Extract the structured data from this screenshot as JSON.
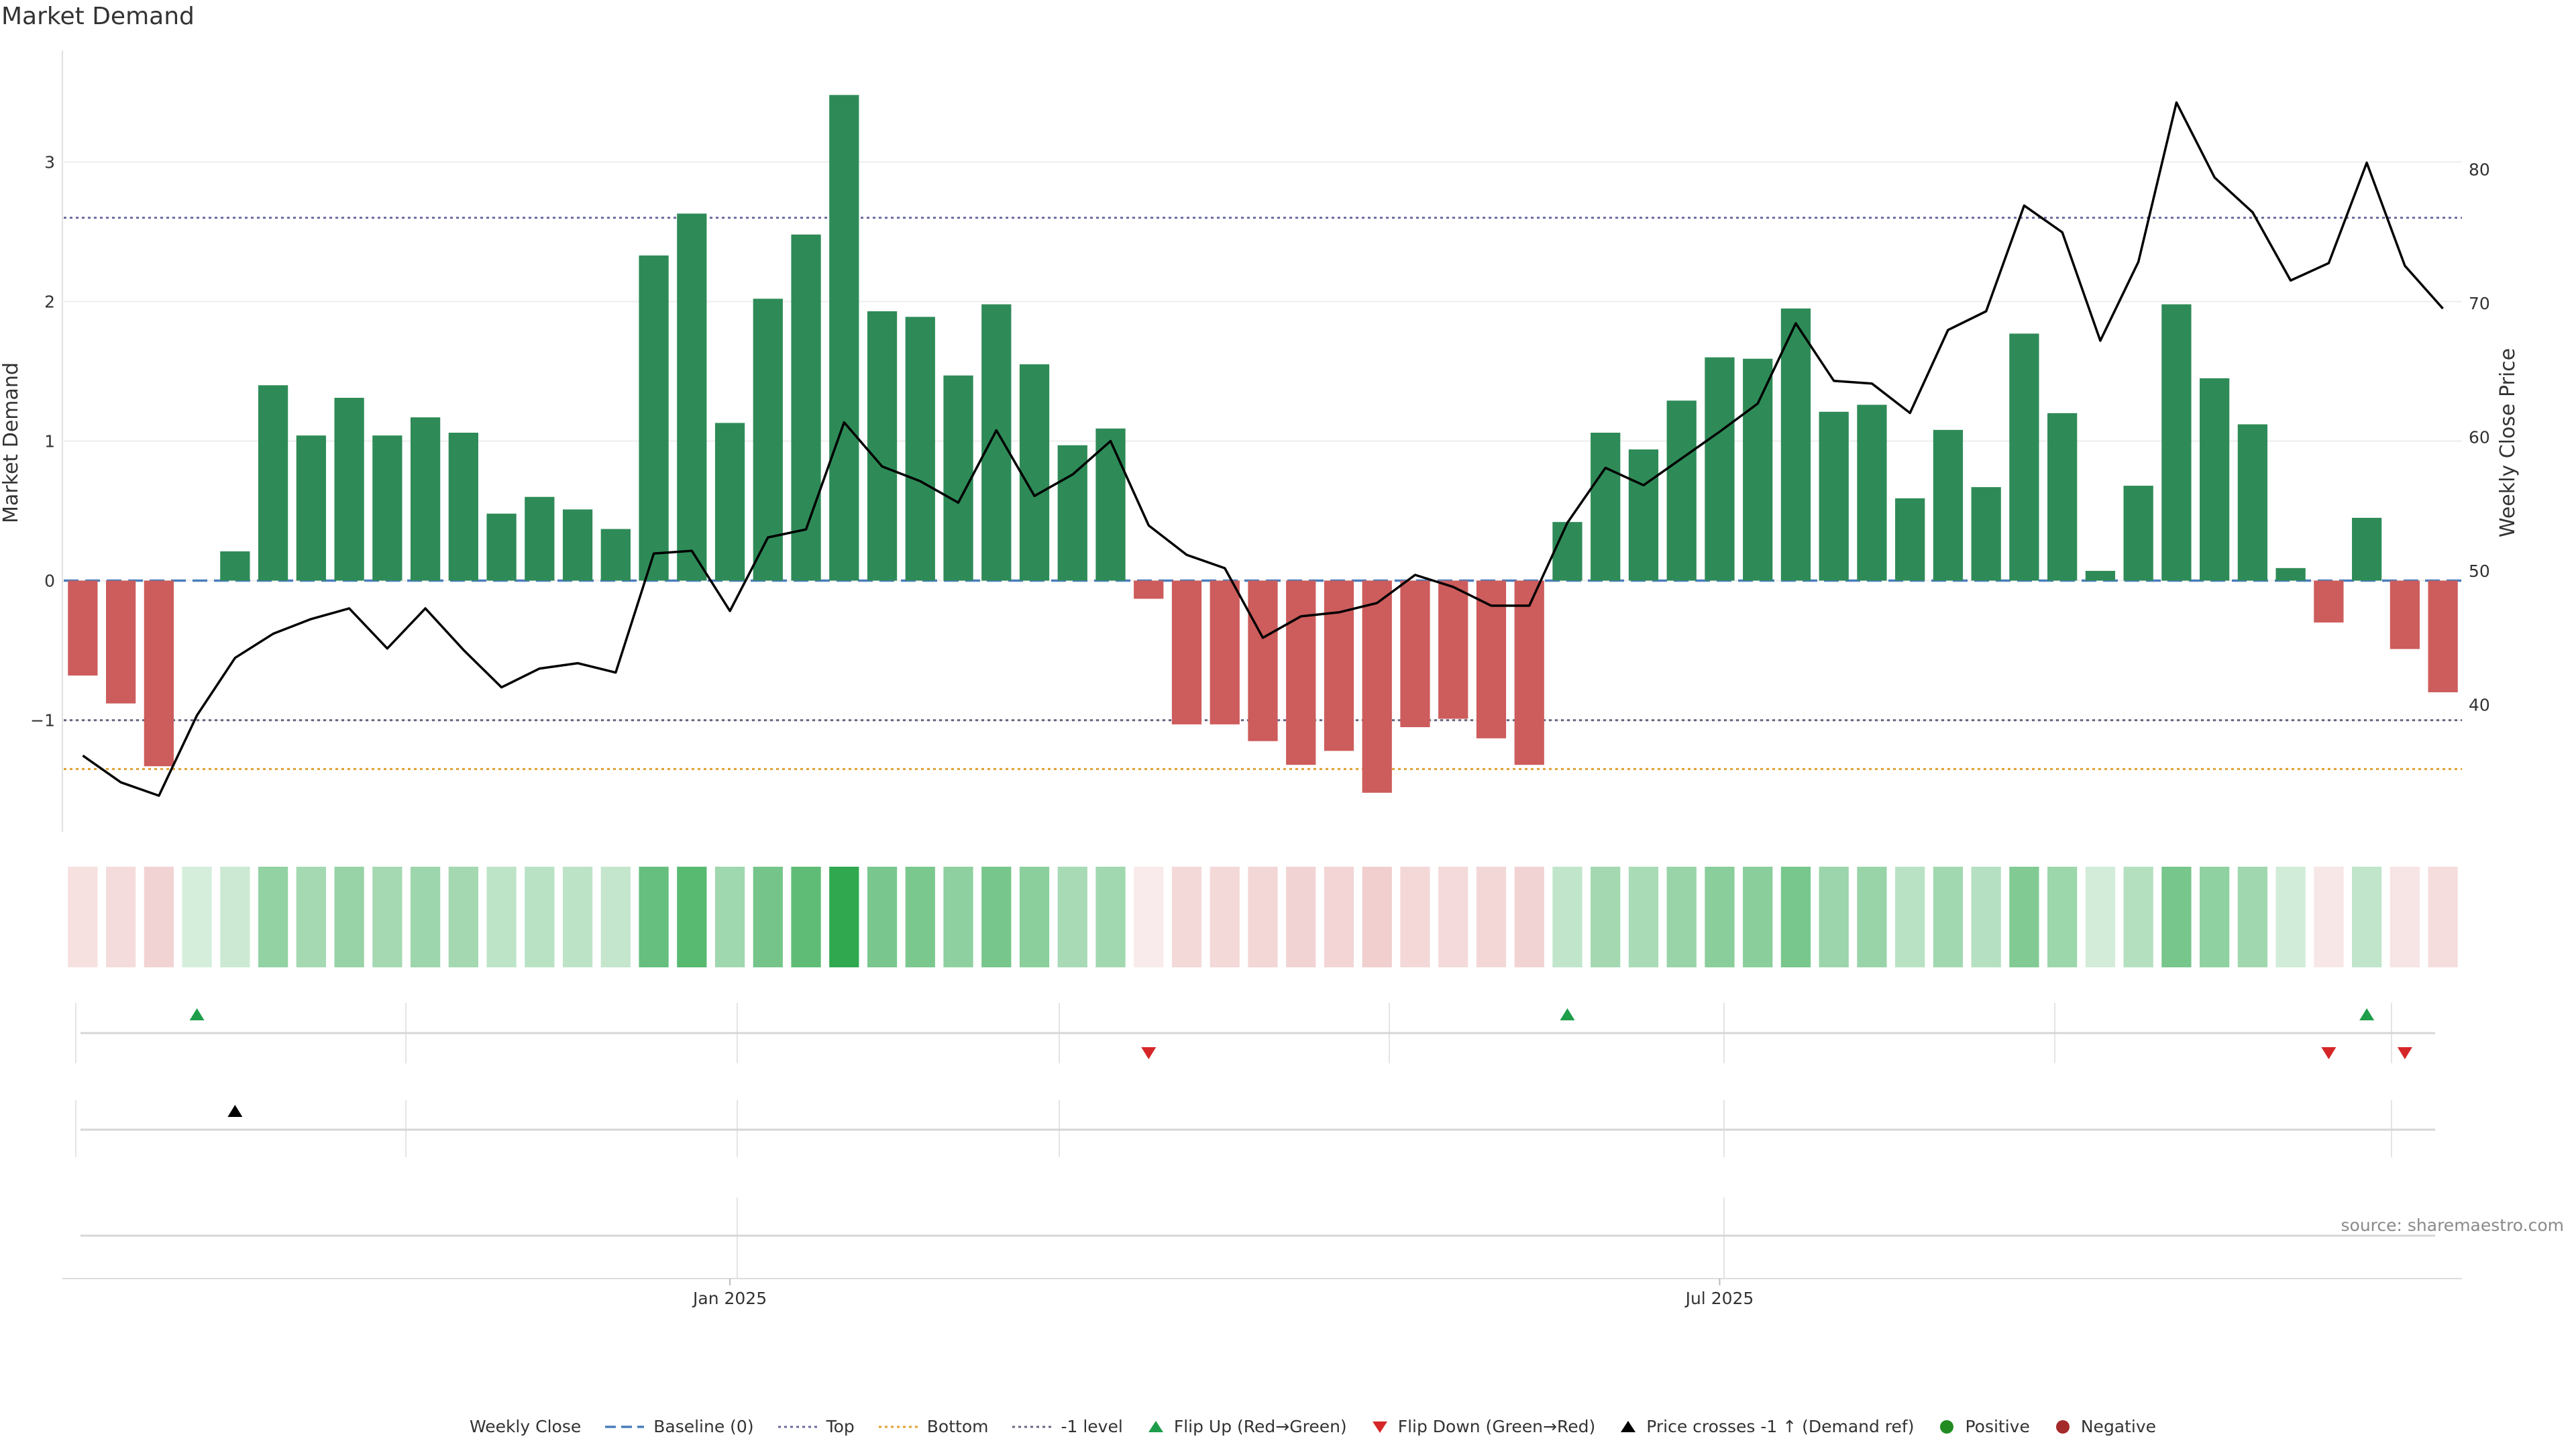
{
  "chart_data": {
    "type": "bar",
    "title": "Market Demand",
    "ylabel": "Market Demand",
    "y2label": "Weekly Close Price",
    "ylim": [
      -1.8,
      3.8
    ],
    "y2lim": [
      30.5,
      88.9
    ],
    "yticks": [
      -1,
      0,
      1,
      2,
      3
    ],
    "y2ticks": [
      40,
      50,
      60,
      70,
      80
    ],
    "xticks": [
      {
        "index": 17.5,
        "label": "Jan 2025"
      },
      {
        "index": 43.5,
        "label": "Jul 2025"
      }
    ],
    "levels": {
      "baseline": 0,
      "top": 2.6,
      "bottom": -1.35,
      "minus_one": -1
    },
    "demand": [
      -0.68,
      -0.88,
      -1.33,
      0.0,
      0.21,
      1.4,
      1.04,
      1.31,
      1.04,
      1.17,
      1.06,
      0.48,
      0.6,
      0.51,
      0.37,
      2.33,
      2.63,
      1.13,
      2.02,
      2.48,
      3.48,
      1.93,
      1.89,
      1.47,
      1.98,
      1.55,
      0.97,
      1.09,
      -0.13,
      -1.03,
      -1.03,
      -1.15,
      -1.32,
      -1.22,
      -1.52,
      -1.05,
      -0.99,
      -1.13,
      -1.32,
      0.42,
      1.06,
      0.94,
      1.29,
      1.6,
      1.59,
      1.95,
      1.21,
      1.26,
      0.59,
      1.08,
      0.67,
      1.77,
      1.2,
      0.07,
      0.68,
      1.98,
      1.45,
      1.12,
      0.09,
      -0.3,
      0.45,
      -0.49,
      -0.8
    ],
    "close": [
      36.2,
      34.2,
      33.2,
      39.2,
      43.5,
      45.3,
      46.4,
      47.2,
      44.2,
      47.2,
      44.1,
      41.3,
      42.7,
      43.1,
      42.4,
      51.3,
      51.5,
      47.0,
      52.5,
      53.1,
      61.1,
      57.8,
      56.7,
      55.1,
      60.5,
      55.6,
      57.2,
      59.7,
      53.4,
      51.2,
      50.2,
      45.0,
      46.6,
      46.9,
      47.6,
      49.7,
      48.8,
      47.4,
      47.4,
      53.6,
      57.7,
      56.4,
      58.4,
      60.4,
      62.5,
      68.5,
      64.2,
      64.0,
      61.8,
      68.0,
      69.4,
      77.3,
      75.3,
      67.2,
      73.1,
      85.0,
      79.4,
      76.8,
      71.7,
      73.0,
      80.5,
      72.8,
      69.6
    ],
    "flip_up": [
      3,
      39,
      60
    ],
    "flip_down": [
      28,
      59,
      61
    ],
    "price_cross_up": [
      4
    ],
    "colors": {
      "positive_bar": "#2e8b57",
      "negative_bar": "#cd5c5c",
      "close_line": "#000000",
      "baseline": "#4a7ebb",
      "top": "#6a6aa0",
      "bottom": "#e0a030",
      "minus_one": "#666680",
      "flip_up": "#1e9e4a",
      "flip_down": "#d62728",
      "cross": "#000000",
      "positive_dot": "#228b22",
      "negative_dot": "#a52a2a"
    },
    "legend": [
      {
        "key": "close",
        "label": "Weekly Close"
      },
      {
        "key": "baseline",
        "label": "Baseline (0)"
      },
      {
        "key": "top",
        "label": "Top"
      },
      {
        "key": "bottom",
        "label": "Bottom"
      },
      {
        "key": "minus_one",
        "label": "-1 level"
      },
      {
        "key": "flip_up",
        "label": "Flip Up (Red→Green)"
      },
      {
        "key": "flip_down",
        "label": "Flip Down (Green→Red)"
      },
      {
        "key": "cross",
        "label": "Price crosses -1 ↑ (Demand ref)"
      },
      {
        "key": "positive_dot",
        "label": "Positive"
      },
      {
        "key": "negative_dot",
        "label": "Negative"
      }
    ],
    "source": "source: sharemaestro.com"
  }
}
